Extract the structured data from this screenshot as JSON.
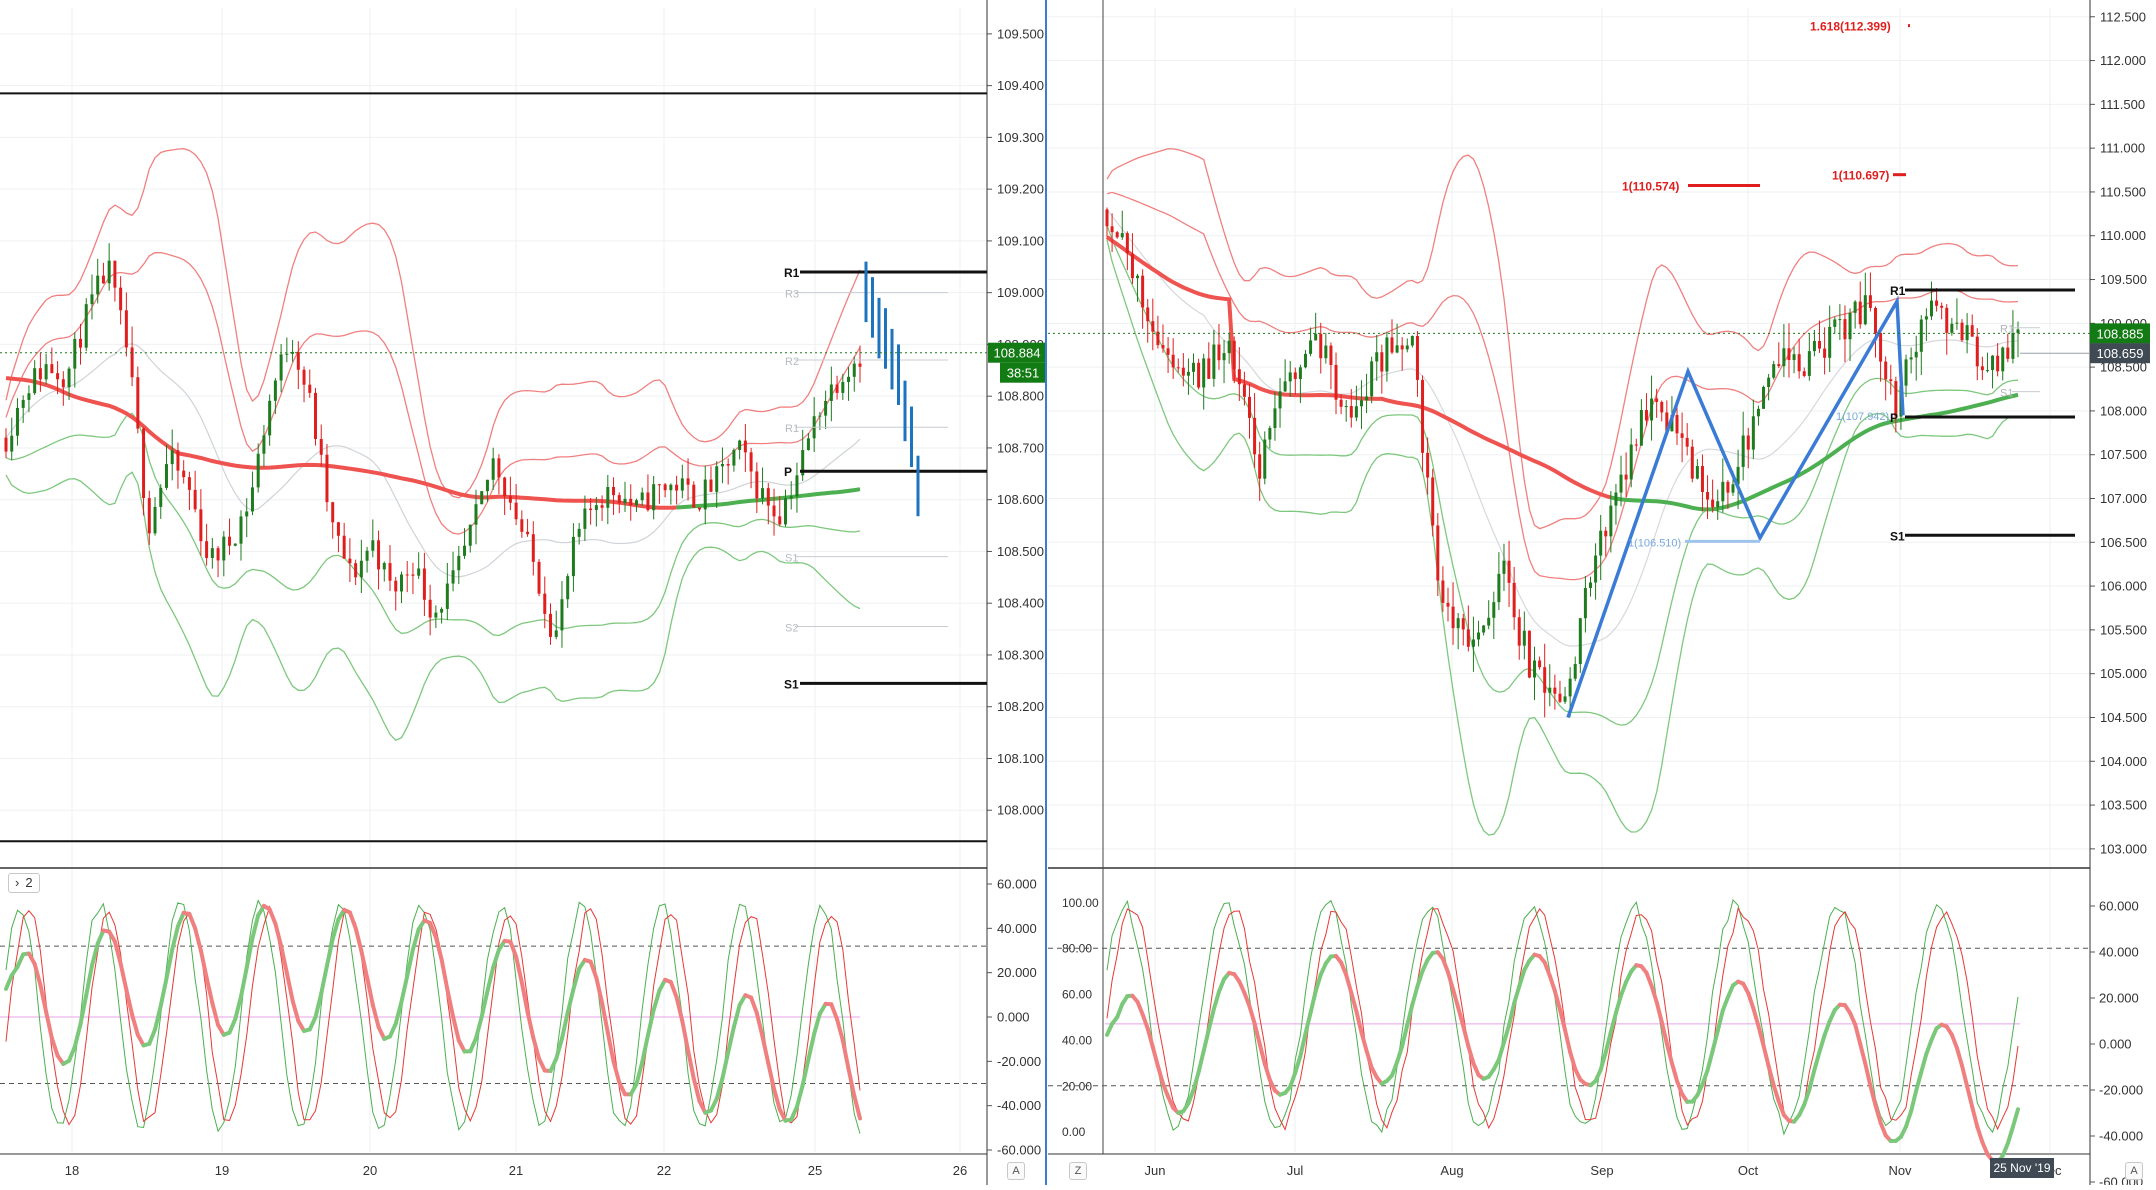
{
  "colors": {
    "bull": "#1e7b1e",
    "bear": "#e01e1e",
    "ma_red": "#ef5350",
    "ma_green": "#4caf50",
    "band_red": "#f08080",
    "band_green": "#7ec87e",
    "zigzag": "#3a7bd5",
    "projection": "#1e73be",
    "price_tag_green": "#137b13",
    "price_tag_dark": "#3f4a54",
    "fib_red": "#e01e1e",
    "grid": "#eef0f2",
    "axis_text": "#333333"
  },
  "left_panel": {
    "indicator_badge": "2",
    "price_axis": {
      "ylim": [
        107.9,
        109.55
      ],
      "ticks": [
        "109.500",
        "109.400",
        "109.300",
        "109.200",
        "109.100",
        "109.000",
        "108.900",
        "108.800",
        "108.700",
        "108.600",
        "108.500",
        "108.400",
        "108.300",
        "108.200",
        "108.100",
        "108.000"
      ],
      "current_price": "108.884",
      "countdown": "38:51"
    },
    "x_labels": [
      "18",
      "19",
      "20",
      "21",
      "22",
      "25",
      "26"
    ],
    "corner_button": "A",
    "horizontal_lines": [
      {
        "label": "",
        "value": 109.385
      },
      {
        "label": "",
        "value": 107.94
      }
    ],
    "pivots": [
      {
        "label": "R1",
        "value": 109.04
      },
      {
        "label": "P",
        "value": 108.655
      },
      {
        "label": "S1",
        "value": 108.245
      }
    ],
    "faint_pivots": [
      {
        "label": "R3",
        "value": 109.0
      },
      {
        "label": "R2",
        "value": 108.87
      },
      {
        "label": "R1",
        "value": 108.74
      },
      {
        "label": "S1",
        "value": 108.49
      },
      {
        "label": "S2",
        "value": 108.355
      }
    ],
    "projection_ticks": [
      109.03,
      109.0,
      108.96,
      108.94,
      108.9,
      108.87,
      108.8,
      108.75,
      108.655
    ],
    "oscillator": {
      "ylim": [
        -60,
        60
      ],
      "ticks": [
        "60.000",
        "40.000",
        "20.000",
        "0.000",
        "-20.000",
        "-40.000",
        "-60.000"
      ],
      "levels": [
        32,
        -30
      ],
      "zero_line": 0
    }
  },
  "right_panel": {
    "price_axis": {
      "ylim": [
        102.85,
        112.6
      ],
      "ticks": [
        "112.500",
        "112.000",
        "111.500",
        "111.000",
        "110.500",
        "110.000",
        "109.500",
        "109.000",
        "108.500",
        "108.000",
        "107.500",
        "107.000",
        "106.500",
        "106.000",
        "105.500",
        "105.000",
        "104.500",
        "104.000",
        "103.500",
        "103.000"
      ],
      "current_price": "108.885",
      "secondary_price": "108.659"
    },
    "x_labels": [
      "Jun",
      "Jul",
      "Aug",
      "Sep",
      "Oct",
      "Nov",
      "Dec"
    ],
    "date_tag": "25 Nov '19",
    "corner_buttons": [
      "Z",
      "A"
    ],
    "pivots": [
      {
        "label": "R1",
        "value": 109.38
      },
      {
        "label": "P",
        "value": 107.93
      },
      {
        "label": "S1",
        "value": 106.58
      }
    ],
    "faint_pivots": [
      {
        "label": "R1",
        "value": 108.95
      },
      {
        "label": "S1",
        "value": 108.22
      }
    ],
    "fibonacci": [
      {
        "label": "1.618(112.399)",
        "value": 112.399
      },
      {
        "label": "1(110.574)",
        "value": 110.574
      },
      {
        "label": "1(110.697)",
        "value": 110.697
      },
      {
        "label": "1(107.942)",
        "value": 107.942
      },
      {
        "label": "1(106.510)",
        "value": 106.51
      }
    ],
    "zigzag": [
      104.5,
      108.45,
      106.55,
      109.25,
      107.95
    ],
    "oscillator": {
      "ylim_left": [
        -8,
        108
      ],
      "ticks_left": [
        "100.00",
        "80.00",
        "60.00",
        "40.00",
        "20.00",
        "0.00"
      ],
      "ticks_right": [
        "60.000",
        "40.000",
        "20.000",
        "0.000",
        "-20.000",
        "-40.000",
        "-60.000"
      ],
      "levels": [
        80,
        20
      ],
      "mid_line": 47
    }
  },
  "chart_data": [
    {
      "type": "candlestick",
      "title": "",
      "timeframe_labels": [
        "18",
        "19",
        "20",
        "21",
        "22",
        "25",
        "26"
      ],
      "ylim": [
        107.9,
        109.55
      ],
      "approx_close_path": [
        108.72,
        108.82,
        108.86,
        108.84,
        108.96,
        109.05,
        108.88,
        108.55,
        108.68,
        108.62,
        108.48,
        108.52,
        108.6,
        108.8,
        108.92,
        108.78,
        108.55,
        108.45,
        108.52,
        108.42,
        108.48,
        108.38,
        108.44,
        108.55,
        108.68,
        108.58,
        108.47,
        108.33,
        108.52,
        108.6,
        108.62,
        108.58,
        108.62,
        108.63,
        108.6,
        108.64,
        108.7,
        108.62,
        108.57,
        108.66,
        108.78,
        108.84,
        108.88
      ],
      "pivots": {
        "R1": 109.04,
        "P": 108.655,
        "S1": 108.245
      },
      "bands": [
        "upper/lower Bollinger-style channels in red and green",
        "red and green moving averages"
      ]
    },
    {
      "type": "candlestick",
      "title": "",
      "x_labels": [
        "Jun",
        "Jul",
        "Aug",
        "Sep",
        "Oct",
        "Nov",
        "Dec"
      ],
      "ylim": [
        102.85,
        112.6
      ],
      "approx_close_path": [
        110.3,
        109.4,
        108.6,
        108.4,
        108.8,
        107.3,
        108.4,
        108.8,
        107.9,
        108.6,
        108.9,
        105.8,
        105.2,
        106.2,
        105.0,
        104.6,
        106.2,
        107.3,
        108.3,
        107.5,
        106.8,
        107.6,
        108.7,
        108.5,
        108.9,
        109.2,
        108.1,
        109.1,
        109.0,
        108.4,
        108.8
      ],
      "pivots": {
        "R1": 109.38,
        "P": 107.93,
        "S1": 106.58
      },
      "fibonacci_targets": [
        112.399,
        110.574,
        110.697,
        107.942,
        106.51
      ]
    }
  ]
}
